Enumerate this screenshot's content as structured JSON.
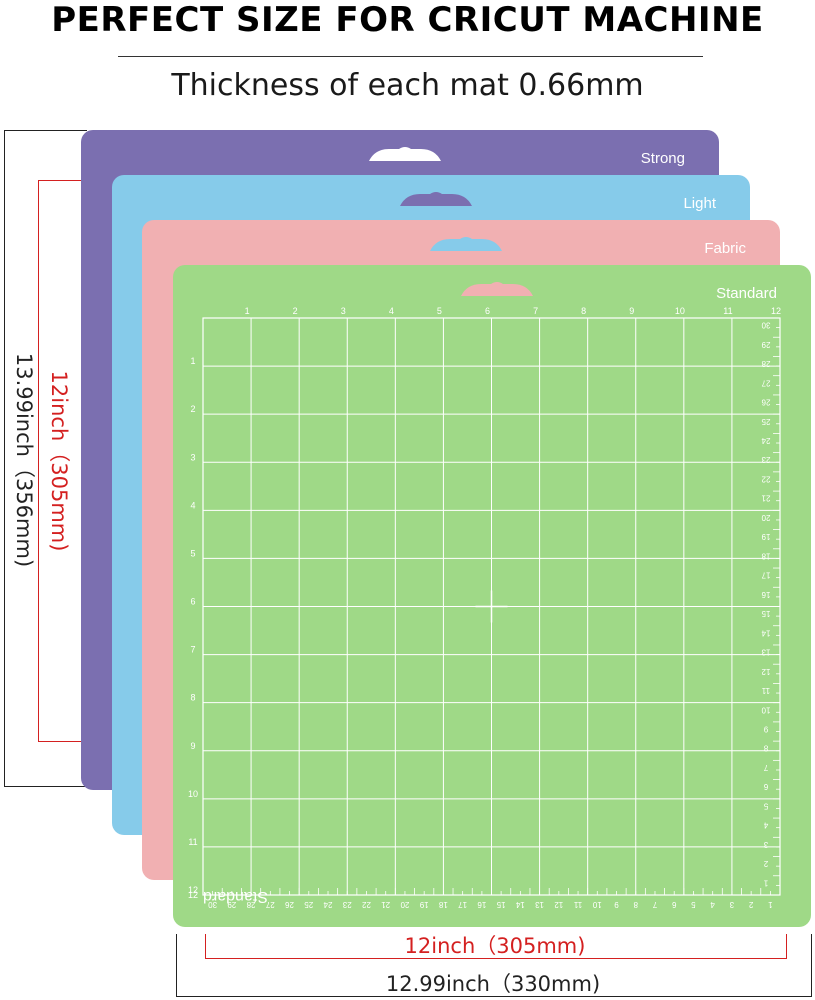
{
  "header": {
    "title": "PERFECT SIZE FOR CRICUT MACHINE",
    "subtitle": "Thickness of each mat 0.66mm"
  },
  "mats": [
    {
      "name": "Strong",
      "color": "#7b6fb0"
    },
    {
      "name": "Light",
      "color": "#86cbea"
    },
    {
      "name": "Fabric",
      "color": "#f1b0b2"
    },
    {
      "name": "Standard",
      "color": "#9fd987"
    }
  ],
  "standard_mat": {
    "label": "Standard",
    "mirrored_label": "Standard",
    "top_ruler": [
      "1",
      "2",
      "3",
      "4",
      "5",
      "6",
      "7",
      "8",
      "9",
      "10",
      "11",
      "12"
    ],
    "left_ruler": [
      "1",
      "2",
      "3",
      "4",
      "5",
      "6",
      "7",
      "8",
      "9",
      "10",
      "11",
      "12"
    ],
    "right_ruler_cm": [
      "30",
      "29",
      "28",
      "27",
      "26",
      "25",
      "24",
      "23",
      "22",
      "21",
      "20",
      "19",
      "18",
      "17",
      "16",
      "15",
      "14",
      "13",
      "12",
      "11",
      "10",
      "9",
      "8",
      "7",
      "6",
      "5",
      "4",
      "3",
      "2",
      "1"
    ],
    "bottom_ruler_cm": [
      "30",
      "29",
      "28",
      "27",
      "26",
      "25",
      "24",
      "23",
      "22",
      "21",
      "20",
      "19",
      "18",
      "17",
      "16",
      "15",
      "14",
      "13",
      "12",
      "11",
      "10",
      "9",
      "8",
      "7",
      "6",
      "5",
      "4",
      "3",
      "2",
      "1"
    ]
  },
  "dimensions": {
    "outer_height": "13.99inch（356mm)",
    "inner_height": "12inch（305mm)",
    "inner_width": "12inch（305mm)",
    "outer_width": "12.99inch（330mm)"
  },
  "colors": {
    "dim_red": "#d42020",
    "dim_black": "#222222"
  }
}
